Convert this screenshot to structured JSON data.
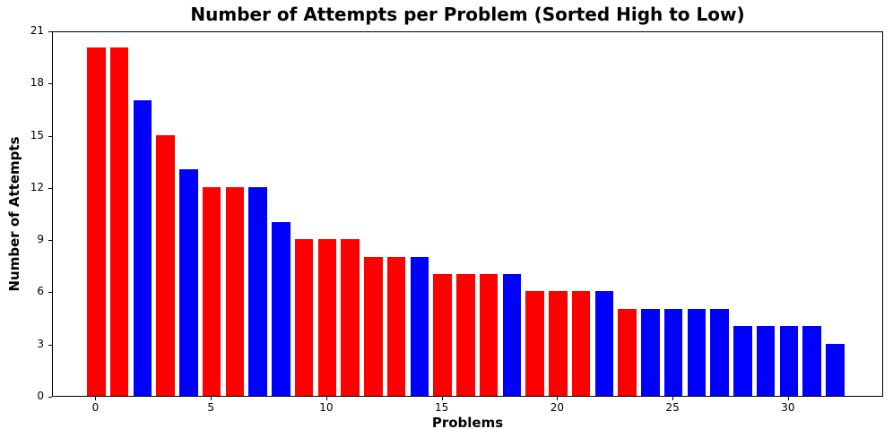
{
  "chart_data": {
    "type": "bar",
    "title": "Number of Attempts per Problem (Sorted High to Low)",
    "xlabel": "Problems",
    "ylabel": "Number of Attempts",
    "x": [
      0,
      1,
      2,
      3,
      4,
      5,
      6,
      7,
      8,
      9,
      10,
      11,
      12,
      13,
      14,
      15,
      16,
      17,
      18,
      19,
      20,
      21,
      22,
      23,
      24,
      25,
      26,
      27,
      28,
      29,
      30,
      31,
      32
    ],
    "values": [
      20,
      20,
      17,
      15,
      13,
      12,
      12,
      12,
      10,
      9,
      9,
      9,
      8,
      8,
      8,
      7,
      7,
      7,
      7,
      6,
      6,
      6,
      6,
      5,
      5,
      5,
      5,
      5,
      4,
      4,
      4,
      4,
      3
    ],
    "bar_colors": [
      "#ff0000",
      "#ff0000",
      "#0000ff",
      "#ff0000",
      "#0000ff",
      "#ff0000",
      "#ff0000",
      "#0000ff",
      "#0000ff",
      "#ff0000",
      "#ff0000",
      "#ff0000",
      "#ff0000",
      "#ff0000",
      "#0000ff",
      "#ff0000",
      "#ff0000",
      "#ff0000",
      "#0000ff",
      "#ff0000",
      "#ff0000",
      "#ff0000",
      "#0000ff",
      "#ff0000",
      "#0000ff",
      "#0000ff",
      "#0000ff",
      "#0000ff",
      "#0000ff",
      "#0000ff",
      "#0000ff",
      "#0000ff",
      "#0000ff"
    ],
    "palette": {
      "red": "#ff0000",
      "blue": "#0000ff"
    },
    "xticks": [
      0,
      5,
      10,
      15,
      20,
      25,
      30
    ],
    "yticks": [
      0,
      3,
      6,
      9,
      12,
      15,
      18,
      21
    ],
    "ylim": [
      0,
      21
    ],
    "xlim": [
      -1.88,
      34.12
    ],
    "grid": false,
    "legend": null,
    "background_color": "#ffffff",
    "axis_color": "#000000"
  }
}
